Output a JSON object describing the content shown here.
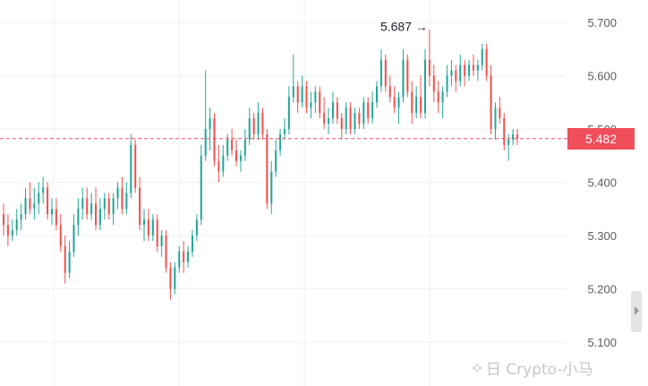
{
  "chart_data": {
    "type": "candlestick",
    "y_axis": {
      "position": "right",
      "ticks": [
        "5.700",
        "5.600",
        "5.500",
        "5.400",
        "5.300",
        "5.200",
        "5.100"
      ],
      "ylim": [
        5.08,
        5.735
      ]
    },
    "grid": true,
    "current_price": "5.482",
    "current_price_value": 5.482,
    "high_annotation": {
      "label": "5.687 →",
      "value": 5.687
    },
    "colors": {
      "up": "#26a69a",
      "down": "#ef5350",
      "price_line": "#ef4e5a"
    },
    "candles": [
      [
        5.34,
        5.36,
        5.3,
        5.32
      ],
      [
        5.32,
        5.34,
        5.28,
        5.3
      ],
      [
        5.3,
        5.33,
        5.29,
        5.31
      ],
      [
        5.31,
        5.35,
        5.3,
        5.33
      ],
      [
        5.33,
        5.36,
        5.31,
        5.34
      ],
      [
        5.34,
        5.39,
        5.33,
        5.37
      ],
      [
        5.37,
        5.4,
        5.34,
        5.35
      ],
      [
        5.35,
        5.39,
        5.33,
        5.36
      ],
      [
        5.36,
        5.4,
        5.34,
        5.38
      ],
      [
        5.38,
        5.41,
        5.36,
        5.39
      ],
      [
        5.39,
        5.4,
        5.33,
        5.34
      ],
      [
        5.34,
        5.37,
        5.32,
        5.35
      ],
      [
        5.35,
        5.37,
        5.31,
        5.32
      ],
      [
        5.32,
        5.34,
        5.27,
        5.28
      ],
      [
        5.28,
        5.3,
        5.21,
        5.23
      ],
      [
        5.23,
        5.29,
        5.22,
        5.27
      ],
      [
        5.27,
        5.34,
        5.26,
        5.32
      ],
      [
        5.32,
        5.37,
        5.3,
        5.35
      ],
      [
        5.35,
        5.39,
        5.33,
        5.37
      ],
      [
        5.37,
        5.39,
        5.33,
        5.34
      ],
      [
        5.34,
        5.38,
        5.33,
        5.36
      ],
      [
        5.36,
        5.39,
        5.31,
        5.32
      ],
      [
        5.32,
        5.37,
        5.31,
        5.35
      ],
      [
        5.35,
        5.38,
        5.33,
        5.37
      ],
      [
        5.37,
        5.38,
        5.33,
        5.34
      ],
      [
        5.34,
        5.38,
        5.32,
        5.37
      ],
      [
        5.37,
        5.4,
        5.35,
        5.39
      ],
      [
        5.39,
        5.41,
        5.34,
        5.35
      ],
      [
        5.35,
        5.4,
        5.34,
        5.38
      ],
      [
        5.38,
        5.49,
        5.37,
        5.47
      ],
      [
        5.47,
        5.48,
        5.38,
        5.39
      ],
      [
        5.39,
        5.41,
        5.31,
        5.32
      ],
      [
        5.32,
        5.35,
        5.29,
        5.33
      ],
      [
        5.33,
        5.35,
        5.29,
        5.3
      ],
      [
        5.3,
        5.34,
        5.29,
        5.33
      ],
      [
        5.33,
        5.34,
        5.27,
        5.28
      ],
      [
        5.28,
        5.31,
        5.26,
        5.3
      ],
      [
        5.3,
        5.31,
        5.23,
        5.24
      ],
      [
        5.24,
        5.25,
        5.18,
        5.2
      ],
      [
        5.2,
        5.25,
        5.19,
        5.24
      ],
      [
        5.24,
        5.28,
        5.23,
        5.27
      ],
      [
        5.27,
        5.29,
        5.23,
        5.25
      ],
      [
        5.25,
        5.28,
        5.24,
        5.27
      ],
      [
        5.27,
        5.31,
        5.26,
        5.3
      ],
      [
        5.3,
        5.34,
        5.29,
        5.33
      ],
      [
        5.33,
        5.47,
        5.32,
        5.45
      ],
      [
        5.45,
        5.61,
        5.44,
        5.5
      ],
      [
        5.5,
        5.54,
        5.46,
        5.52
      ],
      [
        5.52,
        5.53,
        5.43,
        5.44
      ],
      [
        5.44,
        5.47,
        5.4,
        5.42
      ],
      [
        5.42,
        5.47,
        5.41,
        5.45
      ],
      [
        5.45,
        5.49,
        5.44,
        5.48
      ],
      [
        5.48,
        5.5,
        5.45,
        5.46
      ],
      [
        5.46,
        5.48,
        5.43,
        5.44
      ],
      [
        5.44,
        5.46,
        5.42,
        5.45
      ],
      [
        5.45,
        5.5,
        5.44,
        5.48
      ],
      [
        5.48,
        5.54,
        5.47,
        5.52
      ],
      [
        5.52,
        5.53,
        5.48,
        5.49
      ],
      [
        5.49,
        5.55,
        5.48,
        5.53
      ],
      [
        5.53,
        5.54,
        5.48,
        5.49
      ],
      [
        5.49,
        5.5,
        5.35,
        5.36
      ],
      [
        5.36,
        5.44,
        5.34,
        5.42
      ],
      [
        5.42,
        5.48,
        5.41,
        5.46
      ],
      [
        5.46,
        5.5,
        5.45,
        5.49
      ],
      [
        5.49,
        5.52,
        5.48,
        5.5
      ],
      [
        5.5,
        5.58,
        5.49,
        5.56
      ],
      [
        5.56,
        5.64,
        5.55,
        5.58
      ],
      [
        5.58,
        5.59,
        5.53,
        5.55
      ],
      [
        5.55,
        5.6,
        5.54,
        5.58
      ],
      [
        5.58,
        5.59,
        5.53,
        5.54
      ],
      [
        5.54,
        5.57,
        5.52,
        5.55
      ],
      [
        5.55,
        5.58,
        5.53,
        5.57
      ],
      [
        5.57,
        5.58,
        5.52,
        5.53
      ],
      [
        5.53,
        5.56,
        5.5,
        5.51
      ],
      [
        5.51,
        5.54,
        5.49,
        5.52
      ],
      [
        5.52,
        5.57,
        5.51,
        5.55
      ],
      [
        5.55,
        5.56,
        5.51,
        5.52
      ],
      [
        5.52,
        5.53,
        5.48,
        5.5
      ],
      [
        5.5,
        5.55,
        5.49,
        5.54
      ],
      [
        5.54,
        5.55,
        5.49,
        5.5
      ],
      [
        5.5,
        5.54,
        5.49,
        5.53
      ],
      [
        5.53,
        5.54,
        5.5,
        5.51
      ],
      [
        5.51,
        5.56,
        5.5,
        5.55
      ],
      [
        5.55,
        5.56,
        5.51,
        5.52
      ],
      [
        5.52,
        5.57,
        5.51,
        5.55
      ],
      [
        5.55,
        5.59,
        5.54,
        5.58
      ],
      [
        5.58,
        5.65,
        5.57,
        5.63
      ],
      [
        5.63,
        5.64,
        5.57,
        5.58
      ],
      [
        5.58,
        5.6,
        5.55,
        5.56
      ],
      [
        5.56,
        5.58,
        5.53,
        5.54
      ],
      [
        5.54,
        5.57,
        5.51,
        5.56
      ],
      [
        5.56,
        5.65,
        5.55,
        5.63
      ],
      [
        5.63,
        5.64,
        5.56,
        5.57
      ],
      [
        5.57,
        5.59,
        5.51,
        5.53
      ],
      [
        5.53,
        5.58,
        5.52,
        5.56
      ],
      [
        5.56,
        5.6,
        5.52,
        5.53
      ],
      [
        5.53,
        5.65,
        5.52,
        5.63
      ],
      [
        5.63,
        5.687,
        5.58,
        5.6
      ],
      [
        5.6,
        5.62,
        5.55,
        5.57
      ],
      [
        5.57,
        5.59,
        5.53,
        5.55
      ],
      [
        5.55,
        5.58,
        5.52,
        5.57
      ],
      [
        5.57,
        5.62,
        5.56,
        5.6
      ],
      [
        5.6,
        5.63,
        5.58,
        5.61
      ],
      [
        5.61,
        5.62,
        5.57,
        5.59
      ],
      [
        5.59,
        5.64,
        5.58,
        5.62
      ],
      [
        5.62,
        5.63,
        5.58,
        5.6
      ],
      [
        5.6,
        5.63,
        5.59,
        5.62
      ],
      [
        5.62,
        5.64,
        5.6,
        5.61
      ],
      [
        5.61,
        5.63,
        5.59,
        5.62
      ],
      [
        5.62,
        5.66,
        5.61,
        5.65
      ],
      [
        5.65,
        5.66,
        5.59,
        5.6
      ],
      [
        5.6,
        5.62,
        5.49,
        5.5
      ],
      [
        5.5,
        5.55,
        5.48,
        5.54
      ],
      [
        5.54,
        5.56,
        5.51,
        5.52
      ],
      [
        5.52,
        5.53,
        5.46,
        5.47
      ],
      [
        5.47,
        5.49,
        5.44,
        5.48
      ],
      [
        5.48,
        5.5,
        5.47,
        5.49
      ],
      [
        5.49,
        5.5,
        5.47,
        5.482
      ]
    ]
  },
  "watermark": {
    "icon": "butterfly-icon",
    "text": "日 Crypto-小马"
  }
}
